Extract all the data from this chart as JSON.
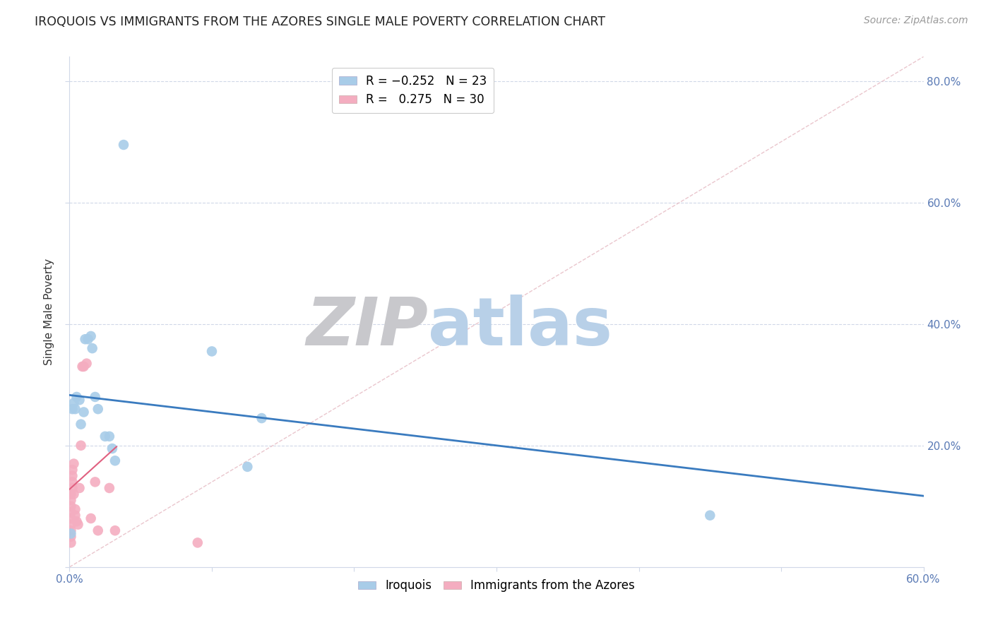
{
  "title": "IROQUOIS VS IMMIGRANTS FROM THE AZORES SINGLE MALE POVERTY CORRELATION CHART",
  "source": "Source: ZipAtlas.com",
  "ylabel": "Single Male Poverty",
  "xlim": [
    0.0,
    0.6
  ],
  "ylim": [
    0.0,
    0.84
  ],
  "xtick_positions": [
    0.0,
    0.1,
    0.2,
    0.3,
    0.4,
    0.5,
    0.6
  ],
  "xtick_labels": [
    "0.0%",
    "",
    "",
    "",
    "",
    "",
    "60.0%"
  ],
  "yticks": [
    0.0,
    0.2,
    0.4,
    0.6,
    0.8
  ],
  "ytick_labels_right": [
    "",
    "20.0%",
    "40.0%",
    "60.0%",
    "80.0%"
  ],
  "blue_color": "#a8cce8",
  "pink_color": "#f4adc0",
  "blue_line_color": "#3a7bbf",
  "pink_line_color": "#e06080",
  "diagonal_color": "#e8c0c8",
  "blue_line_x0": 0.0,
  "blue_line_y0": 0.283,
  "blue_line_x1": 0.6,
  "blue_line_y1": 0.117,
  "pink_line_x0": 0.0,
  "pink_line_y0": 0.128,
  "pink_line_x1": 0.033,
  "pink_line_y1": 0.198,
  "iroquois_x": [
    0.001,
    0.002,
    0.003,
    0.004,
    0.005,
    0.007,
    0.008,
    0.01,
    0.011,
    0.013,
    0.015,
    0.016,
    0.018,
    0.02,
    0.025,
    0.028,
    0.03,
    0.032,
    0.038,
    0.1,
    0.125,
    0.135,
    0.45
  ],
  "iroquois_y": [
    0.055,
    0.26,
    0.27,
    0.26,
    0.28,
    0.275,
    0.235,
    0.255,
    0.375,
    0.375,
    0.38,
    0.36,
    0.28,
    0.26,
    0.215,
    0.215,
    0.195,
    0.175,
    0.695,
    0.355,
    0.165,
    0.245,
    0.085
  ],
  "azores_x": [
    0.001,
    0.001,
    0.001,
    0.001,
    0.001,
    0.001,
    0.001,
    0.001,
    0.001,
    0.002,
    0.002,
    0.002,
    0.002,
    0.003,
    0.003,
    0.004,
    0.004,
    0.005,
    0.006,
    0.007,
    0.008,
    0.009,
    0.01,
    0.012,
    0.015,
    0.018,
    0.02,
    0.028,
    0.032,
    0.09
  ],
  "azores_y": [
    0.04,
    0.05,
    0.06,
    0.07,
    0.08,
    0.09,
    0.1,
    0.11,
    0.12,
    0.13,
    0.14,
    0.15,
    0.16,
    0.17,
    0.12,
    0.095,
    0.085,
    0.075,
    0.07,
    0.13,
    0.2,
    0.33,
    0.33,
    0.335,
    0.08,
    0.14,
    0.06,
    0.13,
    0.06,
    0.04
  ]
}
